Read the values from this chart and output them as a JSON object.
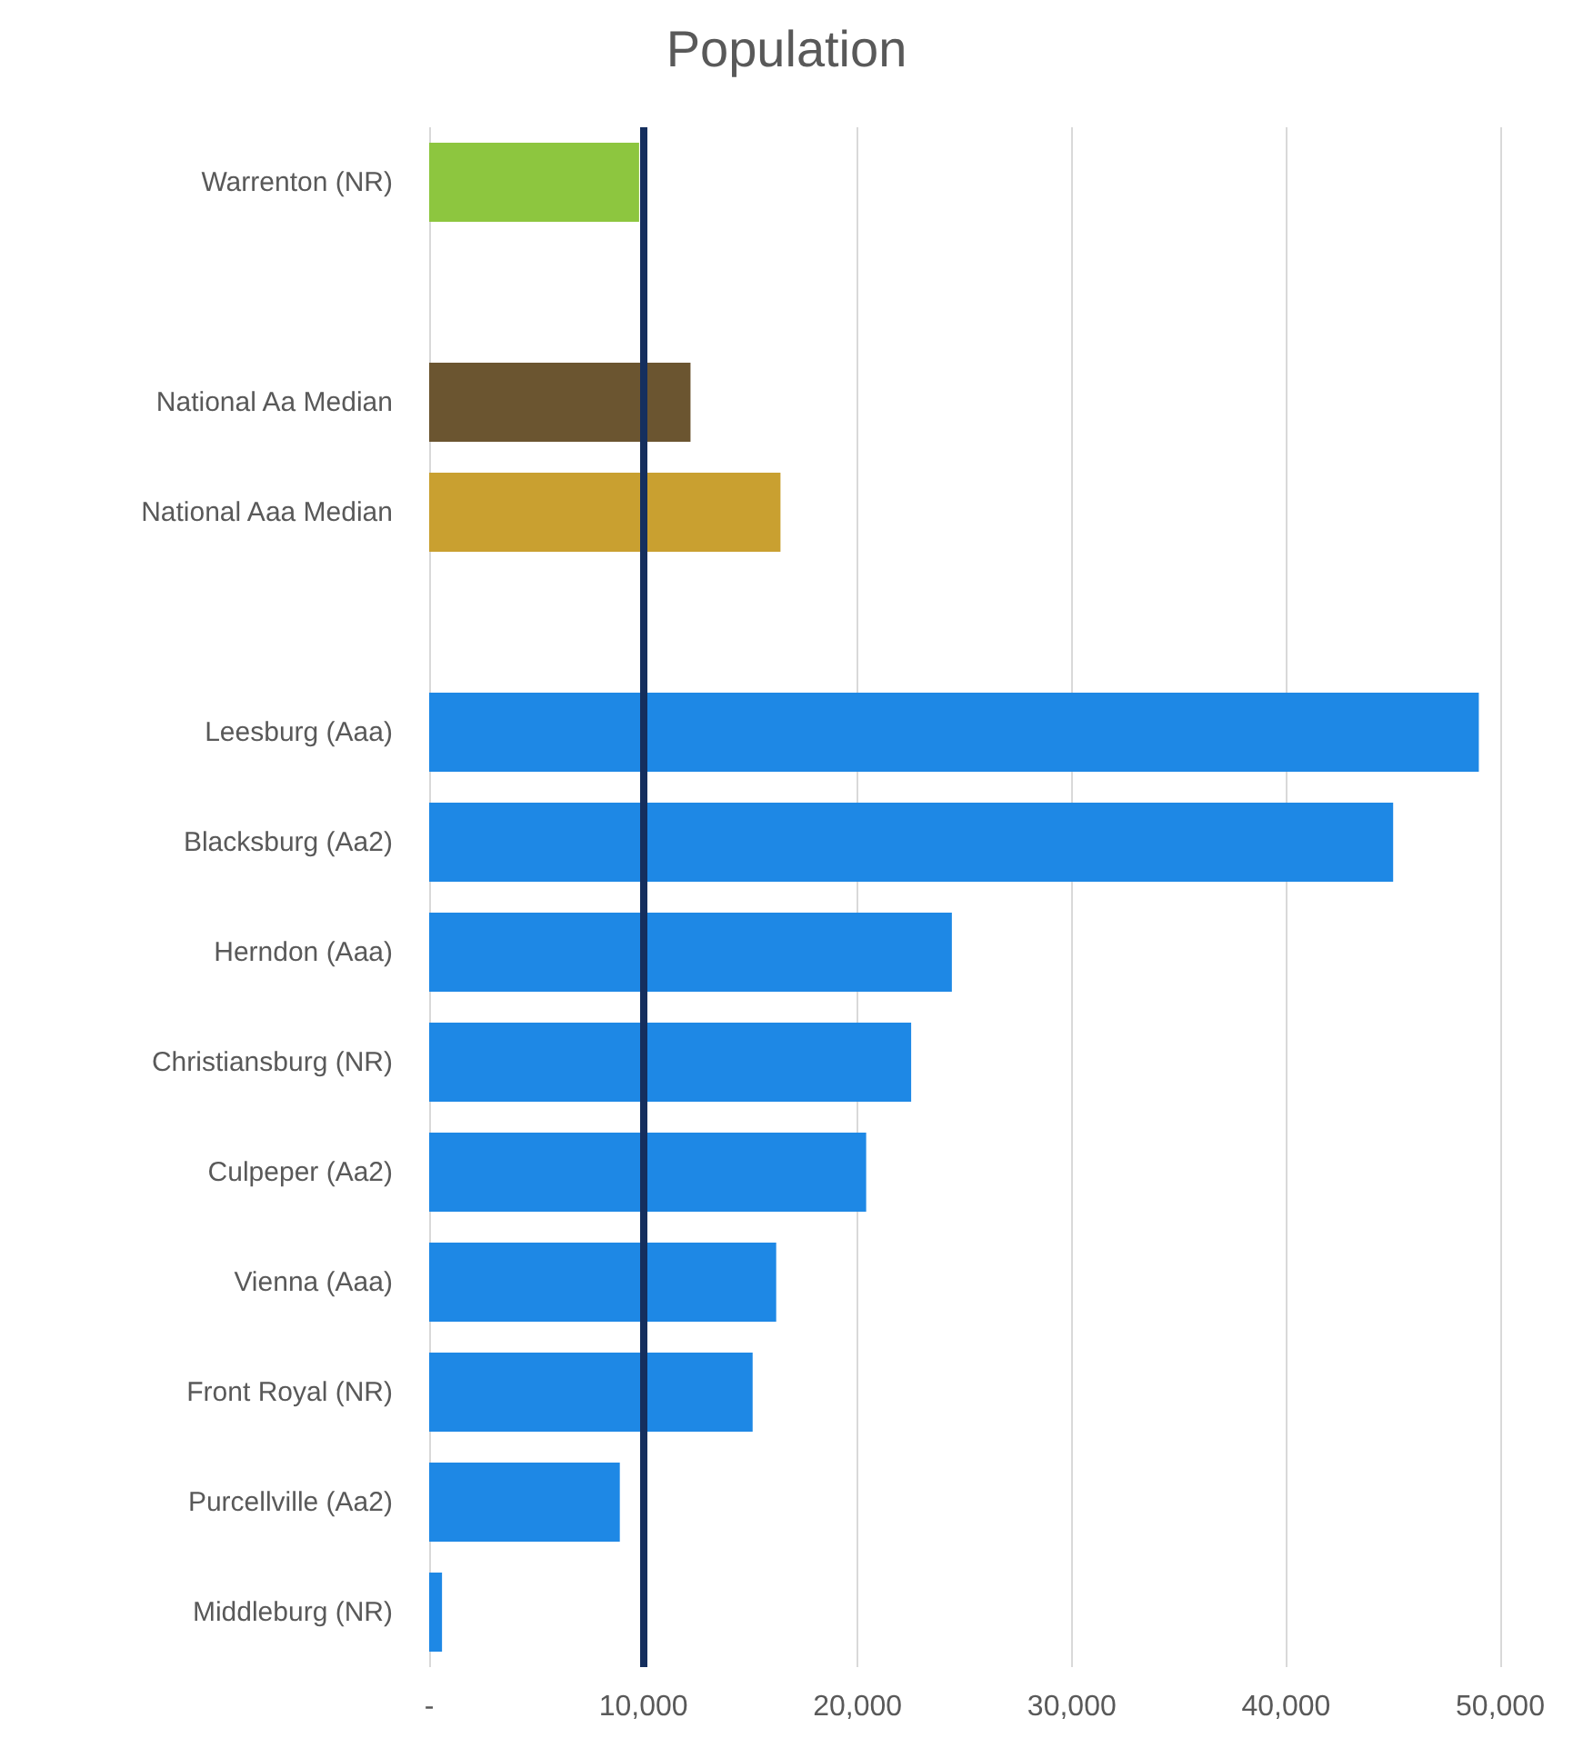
{
  "chart_data": {
    "type": "bar",
    "title": "Population",
    "orientation": "horizontal",
    "categories": [
      "Warrenton (NR)",
      null,
      "National Aa Median",
      "National Aaa Median",
      null,
      "Leesburg (Aaa)",
      "Blacksburg (Aa2)",
      "Herndon (Aaa)",
      "Christiansburg (NR)",
      "Culpeper (Aa2)",
      "Vienna (Aaa)",
      "Front Royal (NR)",
      "Purcellville (Aa2)",
      "Middleburg (NR)"
    ],
    "values": [
      9800,
      null,
      12200,
      16400,
      null,
      49000,
      45000,
      24400,
      22500,
      20400,
      16200,
      15100,
      8900,
      600
    ],
    "colors": [
      "#8dc63f",
      "#1e88e5",
      "#6b5530",
      "#c9a030",
      "#1e88e5",
      "#1e88e5",
      "#1e88e5",
      "#1e88e5",
      "#1e88e5",
      "#1e88e5",
      "#1e88e5",
      "#1e88e5",
      "#1e88e5",
      "#1e88e5"
    ],
    "xlim": [
      0,
      50000
    ],
    "xticks": [
      {
        "value": 0,
        "label": "-"
      },
      {
        "value": 10000,
        "label": "10,000"
      },
      {
        "value": 20000,
        "label": "20,000"
      },
      {
        "value": 30000,
        "label": "30,000"
      },
      {
        "value": 40000,
        "label": "40,000"
      },
      {
        "value": 50000,
        "label": "50,000"
      }
    ],
    "grid": "x",
    "ref_lines": [
      {
        "axis": "x",
        "value": 10000,
        "color": "#152f5e"
      }
    ]
  }
}
